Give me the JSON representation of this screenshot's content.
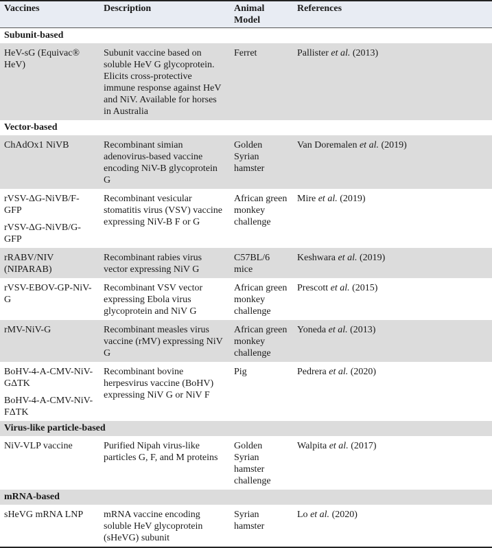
{
  "headers": [
    "Vaccines",
    "Description",
    "Animal Model",
    "References"
  ],
  "rows": [
    {
      "type": "section",
      "label": "Subunit-based"
    },
    {
      "type": "row",
      "vaccines": [
        "HeV-sG (Equivac® HeV)"
      ],
      "description": "Subunit vaccine based on soluble HeV G glycoprotein. Elicits cross-protective immune response against HeV and NiV. Available for horses in Australia",
      "animal_model": "Ferret",
      "ref_author": "Pallister",
      "ref_etal": "et al.",
      "ref_year": "(2013)"
    },
    {
      "type": "section",
      "label": "Vector-based"
    },
    {
      "type": "row",
      "vaccines": [
        "ChAdOx1 NiVB"
      ],
      "description": "Recombinant simian adenovirus-based vaccine encoding NiV-B glycoprotein G",
      "animal_model": "Golden Syrian hamster",
      "ref_author": "Van Doremalen",
      "ref_etal": "et al.",
      "ref_year": "(2019)"
    },
    {
      "type": "row",
      "vaccines": [
        "rVSV-ΔG-NiVB/F-GFP",
        "rVSV-ΔG-NiVB/G-GFP"
      ],
      "description": "Recombinant vesicular stomatitis virus (VSV) vaccine expressing NiV-B F or G",
      "animal_model": "African green monkey challenge",
      "ref_author": "Mire",
      "ref_etal": "et al.",
      "ref_year": "(2019)"
    },
    {
      "type": "row",
      "vaccines": [
        "rRABV/NIV (NIPARAB)"
      ],
      "description": "Recombinant rabies virus vector expressing NiV G",
      "animal_model": "C57BL/6 mice",
      "ref_author": "Keshwara",
      "ref_etal": "et al.",
      "ref_year": "(2019)"
    },
    {
      "type": "row",
      "vaccines": [
        "rVSV-EBOV-GP-NiV-G"
      ],
      "description": "Recombinant VSV vector expressing Ebola virus glycoprotein and NiV G",
      "animal_model": "African green monkey challenge",
      "ref_author": "Prescott",
      "ref_etal": "et al.",
      "ref_year": "(2015)"
    },
    {
      "type": "row",
      "vaccines": [
        "rMV-NiV-G"
      ],
      "description": "Recombinant measles virus vaccine (rMV) expressing NiV G",
      "animal_model": "African green monkey challenge",
      "ref_author": "Yoneda",
      "ref_etal": "et al.",
      "ref_year": "(2013)"
    },
    {
      "type": "row",
      "vaccines": [
        "BoHV-4-A-CMV-NiV-GΔTK",
        "BoHV-4-A-CMV-NiV-FΔTK"
      ],
      "description": "Recombinant bovine herpesvirus vaccine (BoHV) expressing NiV G or NiV F",
      "animal_model": "Pig",
      "ref_author": "Pedrera",
      "ref_etal": "et al.",
      "ref_year": "(2020)"
    },
    {
      "type": "section",
      "label": "Virus-like particle-based"
    },
    {
      "type": "row",
      "vaccines": [
        "NiV-VLP vaccine"
      ],
      "description": "Purified Nipah virus-like particles G, F, and M proteins",
      "animal_model": "Golden Syrian hamster challenge",
      "ref_author": "Walpita",
      "ref_etal": "et al.",
      "ref_year": "(2017)"
    },
    {
      "type": "section",
      "label": "mRNA-based"
    },
    {
      "type": "row",
      "vaccines": [
        "sHeVG mRNA LNP"
      ],
      "description": "mRNA vaccine encoding soluble HeV glycoprotein (sHeVG) subunit",
      "animal_model": "Syrian hamster",
      "ref_author": "Lo",
      "ref_etal": "et al.",
      "ref_year": "(2020)"
    }
  ],
  "colors": {
    "header_bg": "#e8ecf3",
    "alt_row_bg": "#dcdcdc",
    "rule": "#222222"
  }
}
